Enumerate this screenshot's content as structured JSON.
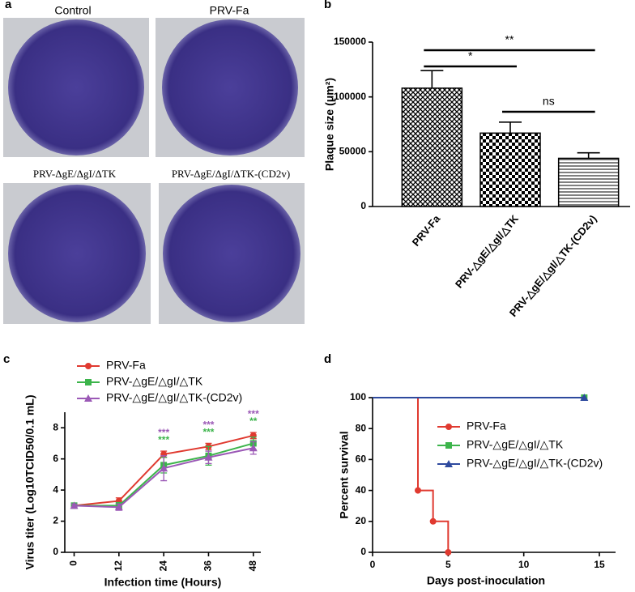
{
  "panel_labels": [
    "a",
    "b",
    "c",
    "d"
  ],
  "plates": [
    "Control",
    "PRV-Fa",
    "PRV-ΔgE/ΔgI/ΔTK",
    "PRV-ΔgE/ΔgI/ΔTK-(CD2v)"
  ],
  "chart_data": [
    {
      "type": "bar",
      "ylabel": "Plaque size (μm²)",
      "categories": [
        "PRV-Fa",
        "PRV-△gE/△gI/△TK",
        "PRV-△gE/△gI/△TK-(CD2v)"
      ],
      "values": [
        108000,
        67000,
        44000
      ],
      "errors": [
        16000,
        10000,
        5000
      ],
      "patterns": [
        "diamond",
        "checker",
        "hlines"
      ],
      "ylim": [
        0,
        150000
      ],
      "yticks": [
        0,
        50000,
        100000,
        150000
      ],
      "annotations": [
        {
          "text": "**",
          "between": [
            "PRV-Fa",
            "PRV-△gE/△gI/△TK-(CD2v)"
          ]
        },
        {
          "text": "*",
          "between": [
            "PRV-Fa",
            "PRV-△gE/△gI/△TK"
          ]
        },
        {
          "text": "ns",
          "between": [
            "PRV-△gE/△gI/△TK",
            "PRV-△gE/△gI/△TK-(CD2v)"
          ]
        }
      ]
    },
    {
      "type": "line",
      "xlabel": "Infection time (Hours)",
      "ylabel": "Virus titer (Log10TCID50/0.1 mL)",
      "x": [
        0,
        12,
        24,
        36,
        48
      ],
      "series": [
        {
          "name": "PRV-Fa",
          "color": "#e03a30",
          "marker": "circle",
          "values": [
            3,
            3.3,
            6.3,
            6.8,
            7.5
          ],
          "errors": [
            0.1,
            0.2,
            0.2,
            0.2,
            0.2
          ]
        },
        {
          "name": "PRV-△gE/△gI/△TK",
          "color": "#3cb44b",
          "marker": "square",
          "values": [
            3,
            3.0,
            5.6,
            6.2,
            7.0
          ],
          "errors": [
            0.1,
            0.2,
            0.5,
            0.6,
            0.4
          ]
        },
        {
          "name": "PRV-△gE/△gI/△TK-(CD2v)",
          "color": "#9b59b6",
          "marker": "triangle",
          "values": [
            3,
            2.9,
            5.4,
            6.1,
            6.7
          ],
          "errors": [
            0.1,
            0.2,
            0.8,
            0.4,
            0.4
          ]
        }
      ],
      "annotations": [
        {
          "text": "***",
          "x": 24,
          "color": "#9b59b6"
        },
        {
          "text": "***",
          "x": 24,
          "color": "#3cb44b"
        },
        {
          "text": "***",
          "x": 36,
          "color": "#9b59b6"
        },
        {
          "text": "***",
          "x": 36,
          "color": "#3cb44b"
        },
        {
          "text": "***",
          "x": 48,
          "color": "#9b59b6"
        },
        {
          "text": "**",
          "x": 48,
          "color": "#3cb44b"
        }
      ],
      "xlim": [
        -2.5,
        50
      ],
      "xticks": [
        0,
        12,
        24,
        36,
        48
      ],
      "ylim": [
        0,
        9
      ],
      "yticks": [
        0,
        2,
        4,
        6,
        8
      ]
    },
    {
      "type": "step",
      "xlabel": "Days post-inoculation",
      "ylabel": "Percent survival",
      "series": [
        {
          "name": "PRV-Fa",
          "color": "#e03a30",
          "marker": "circle",
          "x": [
            0,
            3,
            4,
            5
          ],
          "values": [
            100,
            40,
            20,
            0
          ]
        },
        {
          "name": "PRV-△gE/△gI/△TK",
          "color": "#3cb44b",
          "marker": "square",
          "x": [
            0,
            14
          ],
          "values": [
            100,
            100
          ]
        },
        {
          "name": "PRV-△gE/△gI/△TK-(CD2v)",
          "color": "#2e4a9e",
          "marker": "triangle",
          "x": [
            0,
            14
          ],
          "values": [
            100,
            100
          ]
        }
      ],
      "xlim": [
        0,
        15
      ],
      "xticks": [
        0,
        5,
        10,
        15
      ],
      "ylim": [
        0,
        100
      ],
      "yticks": [
        0,
        20,
        40,
        60,
        80,
        100
      ]
    }
  ]
}
